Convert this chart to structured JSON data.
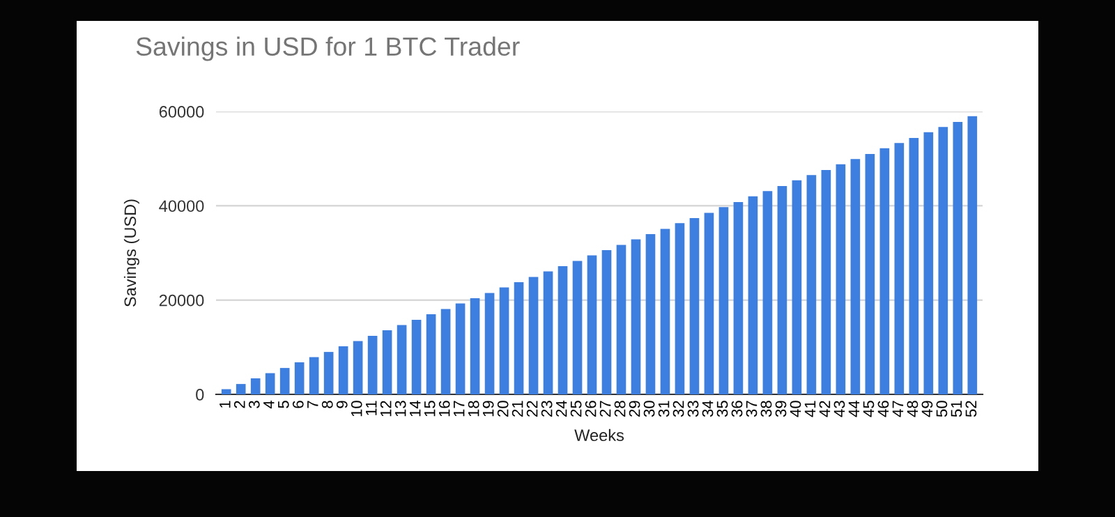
{
  "chart_data": {
    "type": "bar",
    "title": "Savings in USD for 1 BTC Trader",
    "xlabel": "Weeks",
    "ylabel": "Savings (USD)",
    "categories": [
      "1",
      "2",
      "3",
      "4",
      "5",
      "6",
      "7",
      "8",
      "9",
      "10",
      "11",
      "12",
      "13",
      "14",
      "15",
      "16",
      "17",
      "18",
      "19",
      "20",
      "21",
      "22",
      "23",
      "24",
      "25",
      "26",
      "27",
      "28",
      "29",
      "30",
      "31",
      "32",
      "33",
      "34",
      "35",
      "36",
      "37",
      "38",
      "39",
      "40",
      "41",
      "42",
      "43",
      "44",
      "45",
      "46",
      "47",
      "48",
      "49",
      "50",
      "51",
      "52"
    ],
    "values": [
      1100,
      2200,
      3400,
      4500,
      5600,
      6800,
      7900,
      9000,
      10200,
      11300,
      12400,
      13600,
      14700,
      15800,
      17000,
      18100,
      19300,
      20400,
      21500,
      22700,
      23800,
      24900,
      26100,
      27200,
      28300,
      29500,
      30600,
      31700,
      32900,
      34000,
      35100,
      36300,
      37400,
      38500,
      39700,
      40800,
      42000,
      43100,
      44200,
      45400,
      46500,
      47600,
      48800,
      49900,
      51000,
      52200,
      53300,
      54400,
      55600,
      56700,
      57800,
      59000
    ],
    "color": "#3d7fe0",
    "ylim": [
      0,
      60000
    ],
    "yticks": [
      0,
      20000,
      40000,
      60000
    ],
    "grid": "y",
    "legend": false
  }
}
